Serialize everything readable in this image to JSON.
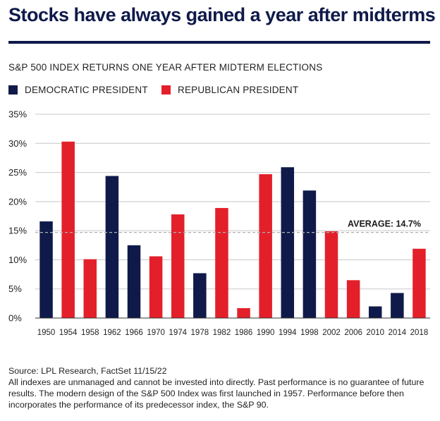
{
  "title": "Stocks have always gained a year after midterms",
  "subtitle": "S&P 500 INDEX RETURNS ONE YEAR AFTER MIDTERM ELECTIONS",
  "legend": {
    "democratic": "DEMOCRATIC PRESIDENT",
    "republican": "REPUBLICAN PRESIDENT"
  },
  "colors": {
    "democratic": "#0f1a4a",
    "republican": "#e3202a",
    "title": "#0f1a4a",
    "grid": "#c8c8c8",
    "average_line": "#b0b0b0"
  },
  "chart_data": {
    "type": "bar",
    "categories": [
      "1950",
      "1954",
      "1958",
      "1962",
      "1966",
      "1970",
      "1974",
      "1978",
      "1982",
      "1986",
      "1990",
      "1994",
      "1998",
      "2002",
      "2006",
      "2010",
      "2014",
      "2018"
    ],
    "values": [
      16.6,
      30.3,
      10.1,
      24.4,
      12.5,
      10.6,
      17.8,
      7.7,
      18.9,
      1.7,
      24.7,
      25.9,
      21.9,
      14.9,
      6.5,
      2.0,
      4.3,
      11.9
    ],
    "party": [
      "democratic",
      "republican",
      "republican",
      "democratic",
      "democratic",
      "republican",
      "republican",
      "democratic",
      "republican",
      "republican",
      "republican",
      "democratic",
      "democratic",
      "republican",
      "republican",
      "democratic",
      "democratic",
      "republican"
    ],
    "yticks": [
      "0%",
      "5%",
      "10%",
      "15%",
      "20%",
      "25%",
      "30%",
      "35%"
    ],
    "ylim": [
      0,
      35
    ],
    "grid": true,
    "average": {
      "value": 14.7,
      "label": "AVERAGE: 14.7%"
    }
  },
  "footer": {
    "source": "Source: LPL Research, FactSet 11/15/22",
    "disclaimer": "All indexes are unmanaged and cannot be invested into directly. Past performance is no guarantee of future results. The modern design of the S&P 500 Index was first launched in 1957. Performance before then incorporates the performance of its predecessor index, the S&P 90."
  }
}
